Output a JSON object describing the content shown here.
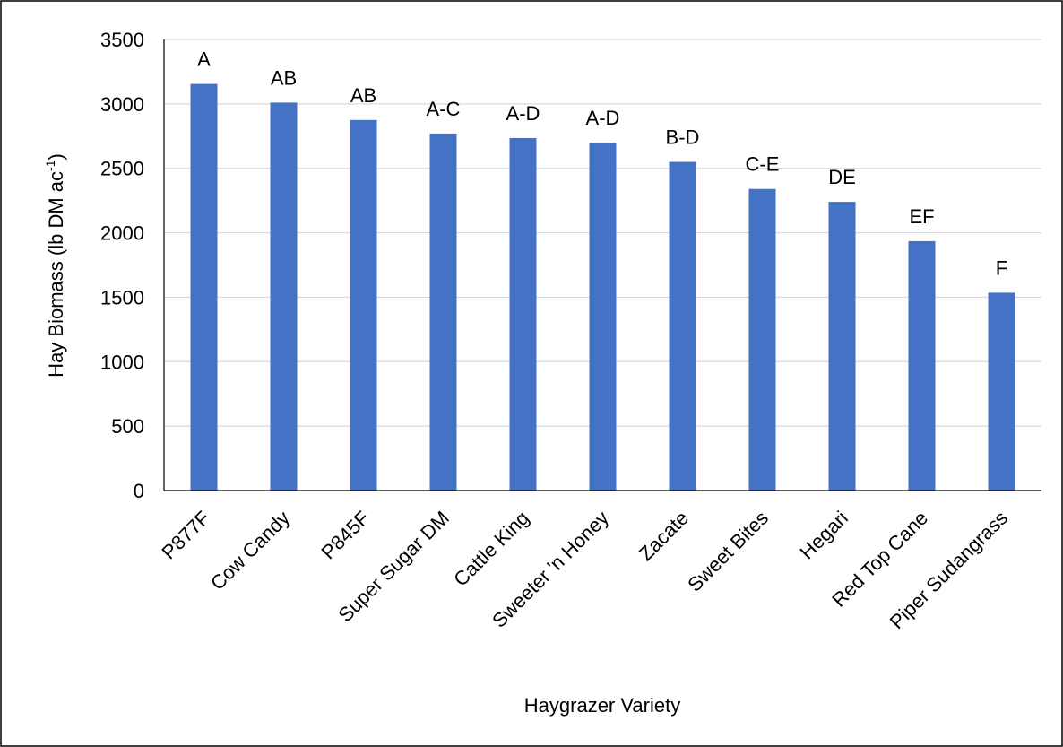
{
  "chart_data": {
    "type": "bar",
    "x_label": "Haygrazer Variety",
    "y_label": [
      "Hay Biomass (lb DM ac",
      "-1",
      ")"
    ],
    "categories": [
      "P877F",
      "Cow Candy",
      "P845F",
      "Super Sugar DM",
      "Cattle King",
      "Sweeter 'n Honey",
      "Zacate",
      "Sweet Bites",
      "Hegari",
      "Red Top Cane",
      "Piper Sudangrass"
    ],
    "values": [
      3155,
      3010,
      2875,
      2770,
      2735,
      2700,
      2550,
      2340,
      2240,
      1935,
      1535
    ],
    "annotations": [
      "A",
      "AB",
      "AB",
      "A-C",
      "A-D",
      "A-D",
      "B-D",
      "C-E",
      "DE",
      "EF",
      "F"
    ],
    "color": "#4472c4",
    "ylim": [
      0,
      3500
    ],
    "yticks": [
      0,
      500,
      1000,
      1500,
      2000,
      2500,
      3000,
      3500
    ],
    "grid": true
  }
}
